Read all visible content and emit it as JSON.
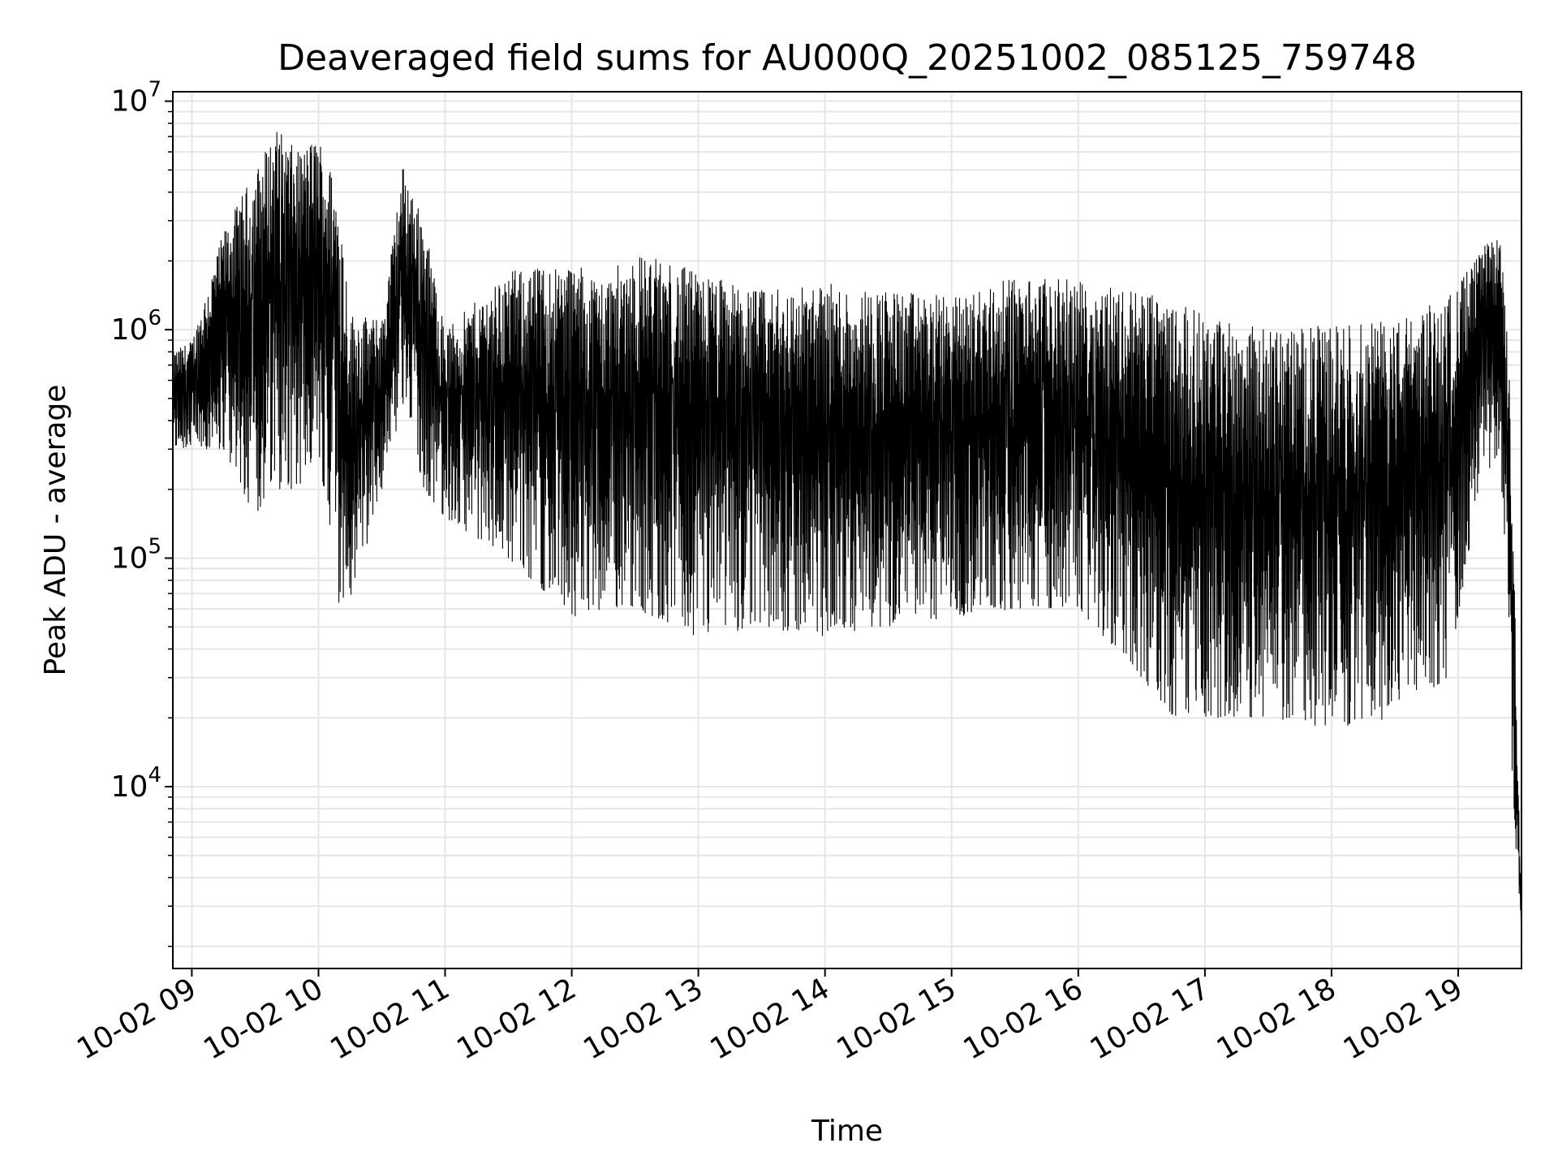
{
  "chart_data": {
    "type": "line",
    "title": "Deaveraged field sums for AU000Q_20251002_085125_759748",
    "xlabel": "Time",
    "ylabel": "Peak ADU - average",
    "yscale": "log",
    "ylim": [
      1600,
      11000000
    ],
    "xlim": [
      "10-02 08:51",
      "10-02 19:30"
    ],
    "grid": true,
    "line_color": "#000000",
    "x_tick_labels": [
      "10-02 09",
      "10-02 10",
      "10-02 11",
      "10-02 12",
      "10-02 13",
      "10-02 14",
      "10-02 15",
      "10-02 16",
      "10-02 17",
      "10-02 18",
      "10-02 19"
    ],
    "y_tick_labels": [
      {
        "value": 10000,
        "base": "10",
        "exp": "4"
      },
      {
        "value": 100000,
        "base": "10",
        "exp": "5"
      },
      {
        "value": 1000000,
        "base": "10",
        "exp": "6"
      },
      {
        "value": 10000000,
        "base": "10",
        "exp": "7"
      }
    ],
    "series": [
      {
        "x": [
          "10-02 08:51",
          "10-02 09:00",
          "10-02 09:15",
          "10-02 09:30",
          "10-02 09:40",
          "10-02 09:50",
          "10-02 10:00",
          "10-02 10:10",
          "10-02 10:15",
          "10-02 10:30",
          "10-02 10:40",
          "10-02 10:50",
          "10-02 11:00",
          "10-02 11:30",
          "10-02 12:00",
          "10-02 12:15",
          "10-02 12:30",
          "10-02 13:00",
          "10-02 13:30",
          "10-02 14:00",
          "10-02 14:30",
          "10-02 15:00",
          "10-02 15:30",
          "10-02 16:00",
          "10-02 16:30",
          "10-02 16:45",
          "10-02 17:00",
          "10-02 17:30",
          "10-02 18:00",
          "10-02 18:30",
          "10-02 18:55",
          "10-02 19:10",
          "10-02 19:20",
          "10-02 19:25",
          "10-02 19:30"
        ],
        "envelope_high": [
          800000,
          900000,
          2700000,
          5000000,
          7800000,
          6000000,
          7200000,
          4000000,
          1200000,
          1100000,
          5300000,
          3000000,
          1000000,
          1800000,
          2000000,
          1700000,
          2200000,
          1800000,
          1500000,
          1600000,
          1500000,
          1400000,
          1700000,
          1650000,
          1500000,
          1300000,
          1200000,
          1000000,
          1050000,
          1100000,
          1400000,
          2200000,
          2800000,
          500000,
          2300
        ],
        "envelope_low": [
          300000,
          300000,
          300000,
          150000,
          200000,
          200000,
          300000,
          60000,
          60000,
          200000,
          400000,
          200000,
          150000,
          100000,
          55000,
          60000,
          60000,
          45000,
          50000,
          45000,
          50000,
          55000,
          60000,
          60000,
          30000,
          20000,
          20000,
          20000,
          18000,
          20000,
          30000,
          200000,
          300000,
          10000,
          2300
        ]
      }
    ]
  }
}
